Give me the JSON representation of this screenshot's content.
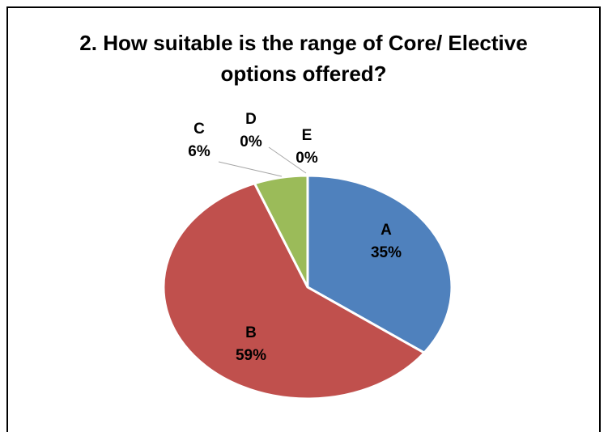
{
  "chart_data": {
    "type": "pie",
    "title": "2. How suitable is the range of Core/ Elective options offered?",
    "categories": [
      "A",
      "B",
      "C",
      "D",
      "E"
    ],
    "values": [
      35,
      59,
      6,
      0,
      0
    ],
    "value_labels": [
      "35%",
      "59%",
      "6%",
      "0%",
      "0%"
    ],
    "colors": [
      "#4f81bd",
      "#c0504d",
      "#9bbb59",
      "#8064a2",
      "#4bacc6"
    ]
  }
}
